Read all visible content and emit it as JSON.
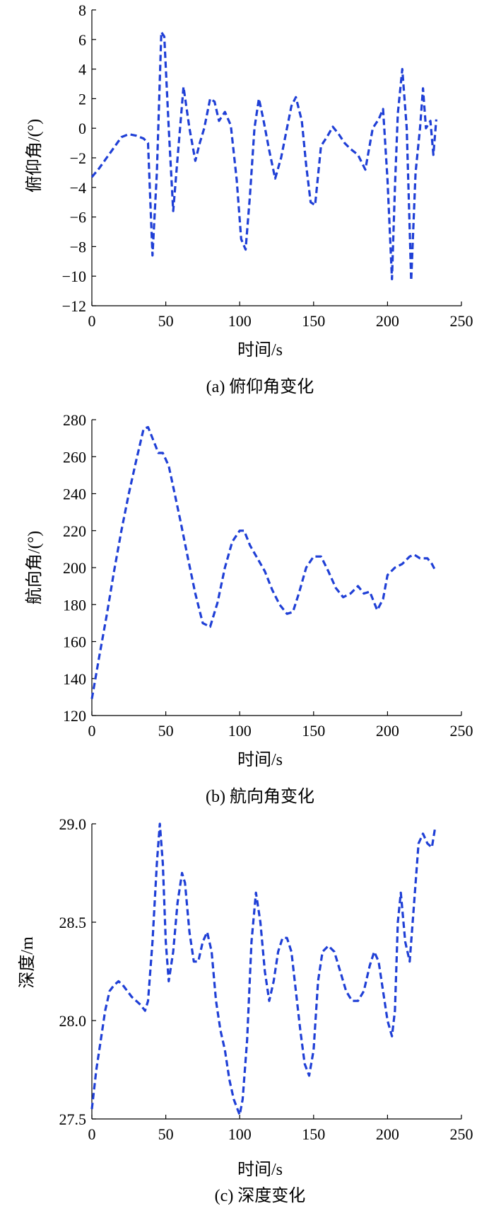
{
  "colors": {
    "series": "#1f3fd6",
    "axis": "#000000"
  },
  "chart_data": [
    {
      "type": "line",
      "caption": "(a) 俯仰角变化",
      "xlabel": "时间/s",
      "ylabel": "俯仰角/(°)",
      "xlim": [
        0,
        250
      ],
      "ylim": [
        -12,
        8
      ],
      "xticks": [
        0,
        50,
        100,
        150,
        200,
        250
      ],
      "xtick_labels": [
        "0",
        "50",
        "100",
        "150",
        "200",
        "250"
      ],
      "yticks": [
        -12,
        -10,
        -8,
        -6,
        -4,
        -2,
        0,
        2,
        4,
        6,
        8
      ],
      "ytick_labels": [
        "−12",
        "−10",
        "−8",
        "−6",
        "−4",
        "−2",
        "0",
        "2",
        "4",
        "6",
        "8"
      ],
      "grid": false,
      "series": [
        {
          "x": [
            0,
            5,
            10,
            15,
            20,
            25,
            30,
            35,
            38,
            41,
            44,
            47,
            49,
            52,
            55,
            58,
            62,
            66,
            70,
            73,
            76,
            80,
            83,
            86,
            90,
            94,
            98,
            101,
            104,
            107,
            110,
            113,
            116,
            120,
            124,
            128,
            132,
            135,
            138,
            142,
            145,
            148,
            151,
            155,
            159,
            163,
            167,
            171,
            175,
            180,
            185,
            190,
            194,
            197,
            200,
            203,
            205,
            207,
            210,
            213,
            216,
            219,
            222,
            224,
            226,
            229,
            231,
            233
          ],
          "y": [
            -3.3,
            -2.7,
            -2.0,
            -1.3,
            -0.6,
            -0.4,
            -0.5,
            -0.7,
            -1.0,
            -8.6,
            -3.0,
            6.5,
            6.2,
            0.0,
            -5.6,
            -2.0,
            2.8,
            0.0,
            -2.2,
            -1.0,
            0.0,
            2.0,
            1.8,
            0.5,
            1.1,
            0.2,
            -3.5,
            -7.5,
            -8.2,
            -4.5,
            0.0,
            2.0,
            0.6,
            -1.5,
            -3.4,
            -2.0,
            0.0,
            1.5,
            2.1,
            0.5,
            -2.5,
            -5.0,
            -5.2,
            -1.2,
            -0.6,
            0.1,
            -0.4,
            -1.0,
            -1.4,
            -1.8,
            -2.8,
            0.0,
            0.6,
            1.3,
            -3.5,
            -10.2,
            -4.0,
            1.0,
            4.0,
            0.0,
            -10.3,
            -3.0,
            0.0,
            2.7,
            0.0,
            0.5,
            -1.8,
            0.6
          ]
        }
      ]
    },
    {
      "type": "line",
      "caption": "(b) 航向角变化",
      "xlabel": "时间/s",
      "ylabel": "航向角/(°)",
      "xlim": [
        0,
        250
      ],
      "ylim": [
        120,
        280
      ],
      "xticks": [
        0,
        50,
        100,
        150,
        200,
        250
      ],
      "xtick_labels": [
        "0",
        "50",
        "100",
        "150",
        "200",
        "250"
      ],
      "yticks": [
        120,
        140,
        160,
        180,
        200,
        220,
        240,
        260,
        280
      ],
      "ytick_labels": [
        "120",
        "140",
        "160",
        "180",
        "200",
        "220",
        "240",
        "260",
        "280"
      ],
      "grid": false,
      "series": [
        {
          "x": [
            0,
            5,
            10,
            15,
            20,
            25,
            30,
            35,
            38,
            42,
            45,
            48,
            52,
            56,
            60,
            65,
            70,
            75,
            80,
            85,
            90,
            95,
            100,
            103,
            107,
            112,
            117,
            122,
            127,
            132,
            136,
            140,
            145,
            150,
            155,
            160,
            165,
            170,
            175,
            180,
            184,
            188,
            193,
            197,
            200,
            205,
            210,
            215,
            218,
            222,
            227,
            230,
            232
          ],
          "y": [
            129,
            152,
            174,
            198,
            220,
            240,
            258,
            275,
            276,
            268,
            262,
            262,
            255,
            240,
            225,
            205,
            186,
            170,
            168,
            181,
            200,
            214,
            220,
            220,
            212,
            205,
            198,
            188,
            180,
            175,
            176,
            186,
            200,
            206,
            206,
            198,
            189,
            184,
            186,
            190,
            186,
            187,
            177,
            183,
            196,
            200,
            202,
            206,
            207,
            205,
            205,
            202,
            199
          ]
        }
      ]
    },
    {
      "type": "line",
      "caption": "(c) 深度变化",
      "xlabel": "时间/s",
      "ylabel": "深度/m",
      "xlim": [
        0,
        250
      ],
      "ylim": [
        27.5,
        29.0
      ],
      "xticks": [
        0,
        50,
        100,
        150,
        200,
        250
      ],
      "xtick_labels": [
        "0",
        "50",
        "100",
        "150",
        "200",
        "250"
      ],
      "yticks": [
        27.5,
        28.0,
        28.5,
        29.0
      ],
      "ytick_labels": [
        "27.5",
        "28.0",
        "28.5",
        "29.0"
      ],
      "grid": false,
      "series": [
        {
          "x": [
            0,
            3,
            6,
            9,
            12,
            15,
            18,
            21,
            24,
            27,
            30,
            33,
            36,
            38,
            41,
            44,
            46,
            48,
            50,
            52,
            55,
            58,
            61,
            63,
            66,
            69,
            72,
            75,
            78,
            81,
            84,
            87,
            90,
            93,
            96,
            100,
            102,
            105,
            108,
            111,
            114,
            117,
            120,
            123,
            126,
            129,
            132,
            135,
            138,
            141,
            144,
            147,
            150,
            153,
            156,
            160,
            164,
            168,
            172,
            176,
            180,
            184,
            188,
            191,
            194,
            197,
            200,
            203,
            205,
            207,
            209,
            212,
            215,
            218,
            221,
            224,
            227,
            230,
            232
          ],
          "y": [
            27.55,
            27.75,
            27.9,
            28.05,
            28.15,
            28.18,
            28.2,
            28.18,
            28.15,
            28.12,
            28.1,
            28.08,
            28.05,
            28.1,
            28.4,
            28.8,
            29.0,
            28.8,
            28.4,
            28.2,
            28.35,
            28.6,
            28.75,
            28.7,
            28.45,
            28.3,
            28.3,
            28.4,
            28.45,
            28.35,
            28.1,
            27.95,
            27.85,
            27.7,
            27.6,
            27.52,
            27.6,
            27.9,
            28.4,
            28.65,
            28.5,
            28.25,
            28.1,
            28.2,
            28.35,
            28.42,
            28.42,
            28.35,
            28.15,
            27.95,
            27.78,
            27.72,
            27.85,
            28.2,
            28.35,
            28.38,
            28.35,
            28.25,
            28.15,
            28.1,
            28.1,
            28.15,
            28.28,
            28.35,
            28.3,
            28.15,
            28.0,
            27.92,
            28.05,
            28.5,
            28.65,
            28.4,
            28.3,
            28.6,
            28.9,
            28.95,
            28.9,
            28.88,
            28.97
          ]
        }
      ]
    }
  ]
}
